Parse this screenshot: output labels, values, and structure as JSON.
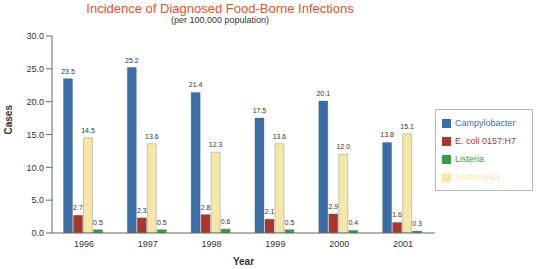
{
  "chart_data": {
    "type": "bar",
    "title": "Incidence of Diagnosed Food-Borne Infections",
    "subtitle": "(per 100,000 population)",
    "x_label": "Year",
    "y_label": "Cases",
    "categories": [
      "1996",
      "1997",
      "1998",
      "1999",
      "2000",
      "2001"
    ],
    "series": [
      {
        "name": "Campylobacter",
        "color": "#3a6ea8",
        "values": [
          23.5,
          25.2,
          21.4,
          17.5,
          20.1,
          13.8
        ]
      },
      {
        "name": "E. coli 0157:H7",
        "color": "#a8382c",
        "values": [
          2.7,
          2.3,
          2.8,
          2.1,
          2.9,
          1.6
        ]
      },
      {
        "name": "Salmonella",
        "color": "#f6e7a9",
        "values": [
          14.5,
          13.6,
          12.3,
          13.6,
          12.0,
          15.1
        ],
        "value_labels": [
          "14.5",
          "13.6",
          "12.3",
          "13.6",
          "12.0",
          "15.1"
        ]
      },
      {
        "name": "Listeria",
        "color": "#3b9a4a",
        "values": [
          0.5,
          0.5,
          0.6,
          0.5,
          0.4,
          0.3
        ]
      }
    ],
    "ylim": [
      0,
      30
    ],
    "yticks": [
      {
        "value": 0,
        "label": "0.0"
      },
      {
        "value": 5,
        "label": "5.0"
      },
      {
        "value": 10,
        "label": "10.0"
      },
      {
        "value": 15,
        "label": "15.0"
      },
      {
        "value": 20,
        "label": "20.0"
      },
      {
        "value": 25,
        "label": "25.0"
      },
      {
        "value": 30,
        "label": "30.0"
      }
    ],
    "grid": false,
    "legend": "right",
    "data_labels": true
  }
}
